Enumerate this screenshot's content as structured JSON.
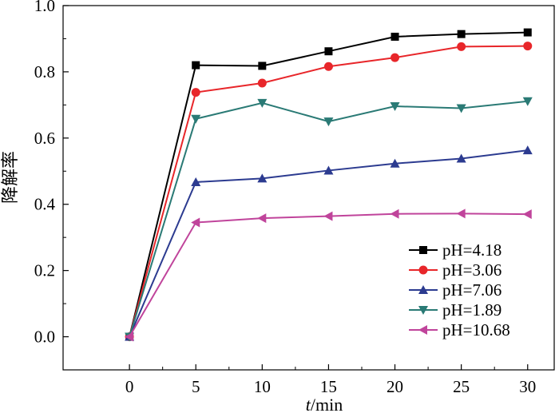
{
  "chart_data": {
    "type": "line",
    "xlabel": {
      "italic": "t",
      "rest": "/min"
    },
    "ylabel": "降解率",
    "x": [
      0,
      5,
      10,
      15,
      20,
      25,
      30
    ],
    "xlim": [
      -5,
      32
    ],
    "ylim": [
      -0.1,
      1.0
    ],
    "xticks": [
      0,
      5,
      10,
      15,
      20,
      25,
      30
    ],
    "xtick_labels": [
      "0",
      "5",
      "10",
      "15",
      "20",
      "25",
      "30"
    ],
    "yticks": [
      0.0,
      0.2,
      0.4,
      0.6,
      0.8,
      1.0
    ],
    "ytick_labels": [
      "0.0",
      "0.2",
      "0.4",
      "0.6",
      "0.8",
      "1.0"
    ],
    "grid": false,
    "legend_position": "bottom-right",
    "series": [
      {
        "name": "pH=4.18",
        "color": "#000000",
        "marker": "square",
        "values": [
          0.0,
          0.82,
          0.818,
          0.862,
          0.906,
          0.914,
          0.919
        ]
      },
      {
        "name": "pH=3.06",
        "color": "#e8262a",
        "marker": "circle",
        "values": [
          0.0,
          0.738,
          0.766,
          0.816,
          0.843,
          0.876,
          0.878
        ]
      },
      {
        "name": "pH=7.06",
        "color": "#2c3b90",
        "marker": "triangle-up",
        "values": [
          0.0,
          0.467,
          0.478,
          0.502,
          0.523,
          0.538,
          0.563
        ]
      },
      {
        "name": "pH=1.89",
        "color": "#2a7a75",
        "marker": "triangle-down",
        "values": [
          0.0,
          0.658,
          0.706,
          0.65,
          0.696,
          0.69,
          0.711
        ]
      },
      {
        "name": "pH=10.68",
        "color": "#c0449b",
        "marker": "triangle-left",
        "values": [
          0.0,
          0.345,
          0.358,
          0.364,
          0.371,
          0.372,
          0.37
        ]
      }
    ]
  }
}
